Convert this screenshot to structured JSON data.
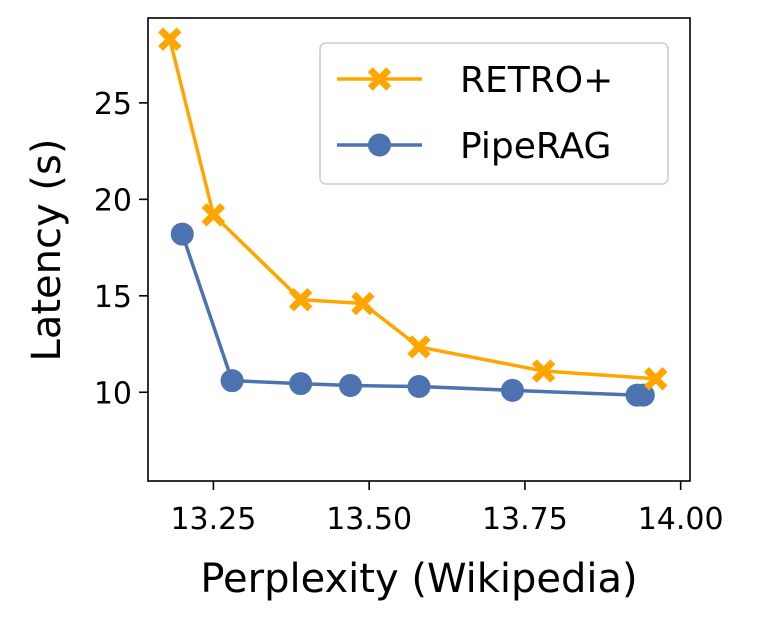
{
  "chart_data": {
    "type": "line",
    "title": "",
    "xlabel": "Perplexity (Wikipedia)",
    "ylabel": "Latency (s)",
    "xlim": [
      13.145,
      14.015
    ],
    "ylim": [
      5.4,
      29.4
    ],
    "xticks": [
      13.25,
      13.5,
      13.75,
      14.0
    ],
    "xtick_labels": [
      "13.25",
      "13.50",
      "13.75",
      "14.00"
    ],
    "yticks": [
      10,
      15,
      20,
      25
    ],
    "ytick_labels": [
      "10",
      "15",
      "20",
      "25"
    ],
    "grid": false,
    "legend_position": "top-right",
    "series": [
      {
        "name": "RETRO+",
        "color": "#ffa500",
        "marker": "x-filled",
        "x": [
          13.18,
          13.25,
          13.39,
          13.49,
          13.58,
          13.78,
          13.96
        ],
        "y": [
          28.3,
          19.2,
          14.8,
          14.6,
          12.35,
          11.1,
          10.7
        ]
      },
      {
        "name": "PipeRAG",
        "color": "#4c72b0",
        "marker": "circle",
        "x": [
          13.2,
          13.28,
          13.39,
          13.47,
          13.58,
          13.73,
          13.93,
          13.94
        ],
        "y": [
          18.2,
          10.6,
          10.45,
          10.35,
          10.3,
          10.1,
          9.85,
          9.85
        ]
      }
    ]
  }
}
